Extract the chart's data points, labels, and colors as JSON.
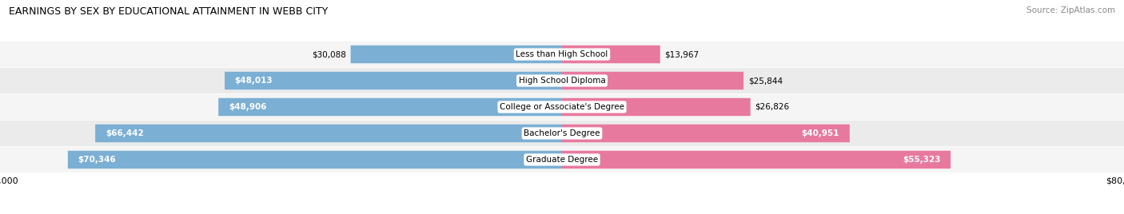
{
  "title": "EARNINGS BY SEX BY EDUCATIONAL ATTAINMENT IN WEBB CITY",
  "source": "Source: ZipAtlas.com",
  "categories": [
    "Less than High School",
    "High School Diploma",
    "College or Associate's Degree",
    "Bachelor's Degree",
    "Graduate Degree"
  ],
  "male_values": [
    30088,
    48013,
    48906,
    66442,
    70346
  ],
  "female_values": [
    13967,
    25844,
    26826,
    40951,
    55323
  ],
  "male_color": "#7bafd4",
  "female_color": "#e8799e",
  "max_value": 80000,
  "bar_height": 0.68,
  "background_color": "#ffffff",
  "row_colors": [
    "#f5f5f5",
    "#ebebeb"
  ],
  "label_bg_color": "#ffffff",
  "title_fontsize": 9.0,
  "source_fontsize": 7.5,
  "bar_label_fontsize": 7.5,
  "cat_label_fontsize": 7.5,
  "axis_label_fontsize": 8.0
}
